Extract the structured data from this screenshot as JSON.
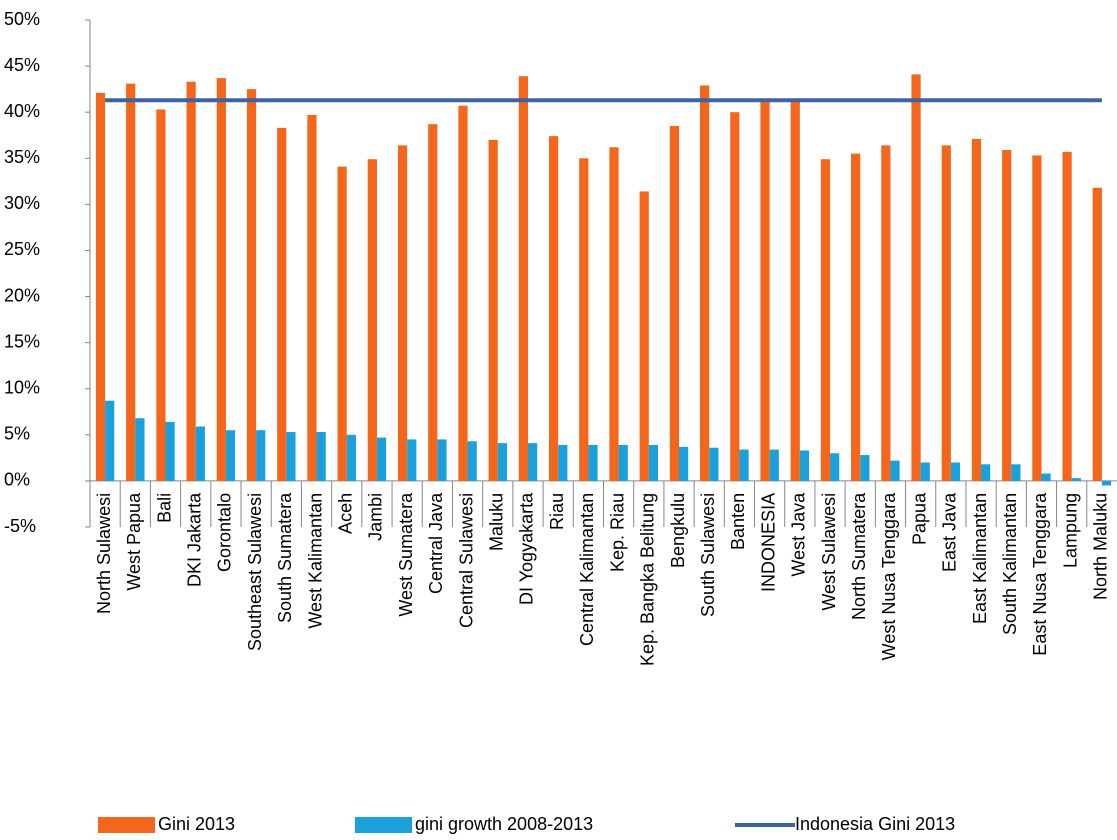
{
  "chart_data": {
    "type": "bar",
    "categories": [
      "North Sulawesi",
      "West Papua",
      "Bali",
      "DKI Jakarta",
      "Gorontalo",
      "Southeast Sulawesi",
      "South Sumatera",
      "West Kalimantan",
      "Aceh",
      "Jambi",
      "West Sumatera",
      "Central Java",
      "Central Sulawesi",
      "Maluku",
      "DI Yogyakarta",
      "Riau",
      "Central Kalimantan",
      "Kep. Riau",
      "Kep. Bangka Belitung",
      "Bengkulu",
      "South Sulawesi",
      "Banten",
      "INDONESIA",
      "West Java",
      "West Sulawesi",
      "North Sumatera",
      "West Nusa Tenggara",
      "Papua",
      "East Java",
      "East Kalimantan",
      "South Kalimantan",
      "East Nusa Tenggara",
      "Lampung",
      "North Maluku"
    ],
    "series": [
      {
        "name": "Gini 2013",
        "color": "#f4661b",
        "kind": "bar",
        "values": [
          42.1,
          43.1,
          40.3,
          43.3,
          43.7,
          42.5,
          38.3,
          39.7,
          34.1,
          34.9,
          36.4,
          38.7,
          40.7,
          37.0,
          43.9,
          37.4,
          35.0,
          36.2,
          31.4,
          38.5,
          42.9,
          40.0,
          41.3,
          41.1,
          34.9,
          35.5,
          36.4,
          44.1,
          36.4,
          37.1,
          35.9,
          35.3,
          35.7,
          31.8
        ]
      },
      {
        "name": "gini growth 2008-2013",
        "color": "#1aa0db",
        "kind": "bar",
        "values": [
          8.7,
          6.8,
          6.4,
          5.9,
          5.5,
          5.5,
          5.3,
          5.3,
          5.0,
          4.7,
          4.5,
          4.5,
          4.3,
          4.1,
          4.1,
          3.9,
          3.9,
          3.9,
          3.9,
          3.7,
          3.6,
          3.4,
          3.4,
          3.3,
          3.0,
          2.8,
          2.2,
          2.0,
          2.0,
          1.8,
          1.8,
          0.8,
          0.3,
          -0.5
        ]
      },
      {
        "name": "Indonesia Gini 2013",
        "color": "#3f63a0",
        "kind": "line",
        "values": [
          41.3,
          41.3,
          41.3,
          41.3,
          41.3,
          41.3,
          41.3,
          41.3,
          41.3,
          41.3,
          41.3,
          41.3,
          41.3,
          41.3,
          41.3,
          41.3,
          41.3,
          41.3,
          41.3,
          41.3,
          41.3,
          41.3,
          41.3,
          41.3,
          41.3,
          41.3,
          41.3,
          41.3,
          41.3,
          41.3,
          41.3,
          41.3,
          41.3,
          41.3
        ]
      }
    ],
    "ylim": [
      -5,
      50
    ],
    "yticks": [
      {
        "value": -5,
        "label": "-5%"
      },
      {
        "value": 0,
        "label": "0%"
      },
      {
        "value": 5,
        "label": "5%"
      },
      {
        "value": 10,
        "label": "10%"
      },
      {
        "value": 15,
        "label": "15%"
      },
      {
        "value": 20,
        "label": "20%"
      },
      {
        "value": 25,
        "label": "25%"
      },
      {
        "value": 30,
        "label": "30%"
      },
      {
        "value": 35,
        "label": "35%"
      },
      {
        "value": 40,
        "label": "40%"
      },
      {
        "value": 45,
        "label": "45%"
      },
      {
        "value": 50,
        "label": "50%"
      }
    ],
    "grid": false,
    "legend": "bottom"
  }
}
